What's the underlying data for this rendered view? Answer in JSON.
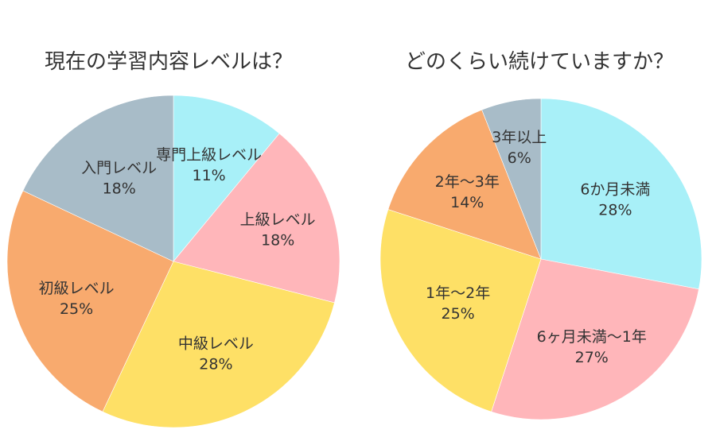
{
  "chart_data": [
    {
      "type": "pie",
      "title": "現在の学習内容レベルは？",
      "categories": [
        "専門上級レベル",
        "上級レベル",
        "中級レベル",
        "初級レベル",
        "入門レベル"
      ],
      "values": [
        11,
        18,
        28,
        25,
        18
      ],
      "value_labels": [
        "11%",
        "18%",
        "28%",
        "25%",
        "18%"
      ],
      "colors": [
        "#A8F0F8",
        "#FFB6BA",
        "#FEE066",
        "#F8AA6E",
        "#A8BCC8"
      ],
      "start": "12-o'clock",
      "direction": "clockwise"
    },
    {
      "type": "pie",
      "title": "どのくらい続けていますか？",
      "categories": [
        "6か月未満",
        "6ヶ月未満〜1年",
        "1年〜2年",
        "2年〜3年",
        "3年以上"
      ],
      "values": [
        28,
        27,
        25,
        14,
        6
      ],
      "value_labels": [
        "28%",
        "27%",
        "25%",
        "14%",
        "6%"
      ],
      "colors": [
        "#A8F0F8",
        "#FFB6BA",
        "#FEE066",
        "#F8AA6E",
        "#A8BCC8"
      ],
      "start": "12-o'clock",
      "direction": "clockwise"
    }
  ]
}
